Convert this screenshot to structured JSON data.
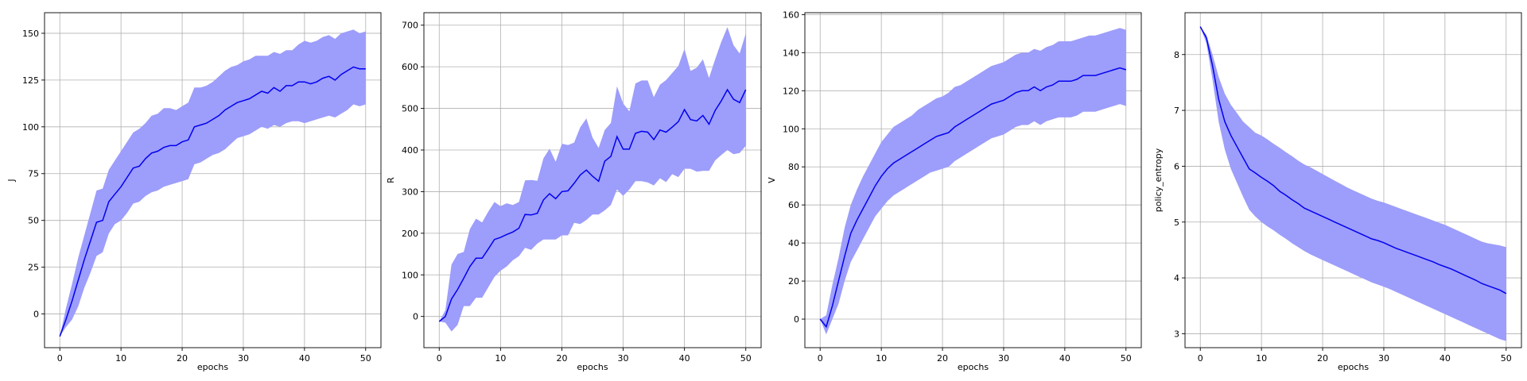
{
  "chart_data": [
    {
      "type": "line",
      "xlabel": "epochs",
      "ylabel": "J",
      "xlim": [
        -2.5,
        52.5
      ],
      "ylim": [
        -18,
        161
      ],
      "xticks": [
        0,
        10,
        20,
        30,
        40,
        50
      ],
      "yticks": [
        0,
        25,
        50,
        75,
        100,
        125,
        150
      ],
      "grid": true,
      "x": [
        0,
        1,
        2,
        3,
        4,
        5,
        6,
        7,
        8,
        9,
        10,
        11,
        12,
        13,
        14,
        15,
        16,
        17,
        18,
        19,
        20,
        21,
        22,
        23,
        24,
        25,
        26,
        27,
        28,
        29,
        30,
        31,
        32,
        33,
        34,
        35,
        36,
        37,
        38,
        39,
        40,
        41,
        42,
        43,
        44,
        45,
        46,
        47,
        48,
        49,
        50
      ],
      "series": [
        {
          "mean": [
            -12,
            -3,
            7,
            18,
            29,
            39,
            49,
            50,
            60,
            64,
            68,
            73,
            78,
            79,
            83,
            86,
            87,
            89,
            90,
            90,
            92,
            93,
            100,
            101,
            102,
            104,
            106,
            109,
            111,
            113,
            114,
            115,
            117,
            119,
            118,
            121,
            119,
            122,
            122,
            124,
            124,
            123,
            124,
            126,
            127,
            125,
            128,
            130,
            132,
            131,
            131
          ],
          "upper": [
            -12,
            3,
            16,
            30,
            42,
            54,
            66,
            67,
            77,
            82,
            87,
            92,
            97,
            99,
            102,
            106,
            107,
            110,
            110,
            109,
            111,
            113,
            121,
            121,
            122,
            124,
            127,
            130,
            132,
            133,
            135,
            136,
            138,
            138,
            138,
            140,
            139,
            141,
            141,
            144,
            146,
            145,
            146,
            148,
            149,
            147,
            150,
            151,
            152,
            150,
            151
          ],
          "lower": [
            -12,
            -7,
            -3,
            4,
            14,
            22,
            31,
            33,
            43,
            48,
            50,
            54,
            59,
            60,
            63,
            65,
            66,
            68,
            69,
            70,
            71,
            72,
            80,
            81,
            83,
            85,
            86,
            88,
            91,
            94,
            95,
            96,
            98,
            100,
            99,
            101,
            100,
            102,
            103,
            103,
            102,
            103,
            104,
            105,
            106,
            105,
            107,
            109,
            112,
            111,
            112
          ]
        }
      ]
    },
    {
      "type": "line",
      "xlabel": "epochs",
      "ylabel": "R",
      "xlim": [
        -2.5,
        52.5
      ],
      "ylim": [
        -75,
        730
      ],
      "xticks": [
        0,
        10,
        20,
        30,
        40,
        50
      ],
      "yticks": [
        0,
        100,
        200,
        300,
        400,
        500,
        600,
        700
      ],
      "grid": true,
      "x": [
        0,
        1,
        2,
        3,
        4,
        5,
        6,
        7,
        8,
        9,
        10,
        11,
        12,
        13,
        14,
        15,
        16,
        17,
        18,
        19,
        20,
        21,
        22,
        23,
        24,
        25,
        26,
        27,
        28,
        29,
        30,
        31,
        32,
        33,
        34,
        35,
        36,
        37,
        38,
        39,
        40,
        41,
        42,
        43,
        44,
        45,
        46,
        47,
        48,
        49,
        50
      ],
      "series": [
        {
          "mean": [
            -12,
            0,
            42,
            65,
            92,
            120,
            140,
            140,
            162,
            185,
            190,
            197,
            203,
            212,
            245,
            244,
            248,
            280,
            295,
            283,
            300,
            302,
            320,
            340,
            352,
            337,
            325,
            373,
            385,
            432,
            402,
            402,
            440,
            445,
            443,
            425,
            448,
            443,
            455,
            468,
            497,
            473,
            470,
            483,
            462,
            495,
            518,
            545,
            522,
            514,
            545
          ],
          "upper": [
            -12,
            15,
            125,
            150,
            155,
            210,
            235,
            226,
            252,
            275,
            265,
            272,
            268,
            275,
            327,
            328,
            326,
            380,
            403,
            372,
            415,
            412,
            418,
            455,
            476,
            430,
            405,
            448,
            465,
            553,
            512,
            493,
            560,
            567,
            567,
            527,
            557,
            568,
            585,
            602,
            643,
            590,
            598,
            618,
            573,
            618,
            660,
            695,
            652,
            632,
            680
          ],
          "lower": [
            -12,
            -15,
            -36,
            -20,
            25,
            25,
            45,
            45,
            70,
            95,
            110,
            120,
            135,
            145,
            165,
            160,
            175,
            185,
            185,
            185,
            195,
            195,
            225,
            222,
            232,
            245,
            245,
            255,
            268,
            305,
            290,
            305,
            325,
            325,
            322,
            315,
            332,
            323,
            342,
            335,
            355,
            355,
            348,
            350,
            350,
            375,
            388,
            400,
            390,
            393,
            410
          ]
        }
      ]
    },
    {
      "type": "line",
      "xlabel": "epochs",
      "ylabel": "V",
      "xlim": [
        -2.5,
        52.5
      ],
      "ylim": [
        -15,
        161
      ],
      "xticks": [
        0,
        10,
        20,
        30,
        40,
        50
      ],
      "yticks": [
        0,
        20,
        40,
        60,
        80,
        100,
        120,
        140,
        160
      ],
      "grid": true,
      "x": [
        0,
        1,
        2,
        3,
        4,
        5,
        6,
        7,
        8,
        9,
        10,
        11,
        12,
        13,
        14,
        15,
        16,
        17,
        18,
        19,
        20,
        21,
        22,
        23,
        24,
        25,
        26,
        27,
        28,
        29,
        30,
        31,
        32,
        33,
        34,
        35,
        36,
        37,
        38,
        39,
        40,
        41,
        42,
        43,
        44,
        45,
        46,
        47,
        48,
        49,
        50
      ],
      "series": [
        {
          "mean": [
            0,
            -4,
            7,
            20,
            33,
            45,
            52,
            58,
            64,
            70,
            75,
            79,
            82,
            84,
            86,
            88,
            90,
            92,
            94,
            96,
            97,
            98,
            101,
            103,
            105,
            107,
            109,
            111,
            113,
            114,
            115,
            117,
            119,
            120,
            120,
            122,
            120,
            122,
            123,
            125,
            125,
            125,
            126,
            128,
            128,
            128,
            129,
            130,
            131,
            132,
            131
          ],
          "upper": [
            0,
            2,
            18,
            32,
            48,
            60,
            68,
            75,
            81,
            87,
            93,
            97,
            101,
            103,
            105,
            107,
            110,
            112,
            114,
            116,
            117,
            119,
            122,
            123,
            125,
            127,
            129,
            131,
            133,
            134,
            135,
            137,
            139,
            140,
            140,
            142,
            141,
            143,
            144,
            146,
            146,
            146,
            147,
            148,
            149,
            149,
            150,
            151,
            152,
            153,
            152
          ],
          "lower": [
            0,
            -8,
            0,
            8,
            20,
            30,
            36,
            42,
            48,
            54,
            58,
            62,
            65,
            67,
            69,
            71,
            73,
            75,
            77,
            78,
            79,
            80,
            83,
            85,
            87,
            89,
            91,
            93,
            95,
            96,
            97,
            99,
            101,
            102,
            102,
            104,
            102,
            104,
            105,
            106,
            106,
            106,
            107,
            109,
            109,
            109,
            110,
            111,
            112,
            113,
            112
          ]
        }
      ]
    },
    {
      "type": "line",
      "xlabel": "epochs",
      "ylabel": "policy_entropy",
      "xlim": [
        -2.5,
        52.5
      ],
      "ylim": [
        2.75,
        8.75
      ],
      "xticks": [
        0,
        10,
        20,
        30,
        40,
        50
      ],
      "yticks": [
        3,
        4,
        5,
        6,
        7,
        8
      ],
      "grid": true,
      "x": [
        0,
        1,
        2,
        3,
        4,
        5,
        6,
        7,
        8,
        9,
        10,
        11,
        12,
        13,
        14,
        15,
        16,
        17,
        18,
        19,
        20,
        21,
        22,
        23,
        24,
        25,
        26,
        27,
        28,
        29,
        30,
        31,
        32,
        33,
        34,
        35,
        36,
        37,
        38,
        39,
        40,
        41,
        42,
        43,
        44,
        45,
        46,
        47,
        48,
        49,
        50
      ],
      "series": [
        {
          "mean": [
            8.5,
            8.3,
            7.8,
            7.2,
            6.8,
            6.55,
            6.35,
            6.15,
            5.95,
            5.88,
            5.8,
            5.73,
            5.65,
            5.55,
            5.48,
            5.4,
            5.33,
            5.25,
            5.2,
            5.15,
            5.1,
            5.05,
            5.0,
            4.95,
            4.9,
            4.85,
            4.8,
            4.75,
            4.7,
            4.67,
            4.63,
            4.58,
            4.53,
            4.49,
            4.45,
            4.41,
            4.37,
            4.33,
            4.29,
            4.24,
            4.2,
            4.16,
            4.11,
            4.06,
            4.01,
            3.96,
            3.9,
            3.86,
            3.82,
            3.78,
            3.72
          ],
          "upper": [
            8.5,
            8.35,
            8.0,
            7.6,
            7.3,
            7.1,
            6.95,
            6.8,
            6.7,
            6.6,
            6.55,
            6.48,
            6.4,
            6.33,
            6.25,
            6.18,
            6.1,
            6.03,
            5.98,
            5.92,
            5.86,
            5.8,
            5.74,
            5.68,
            5.62,
            5.57,
            5.52,
            5.47,
            5.42,
            5.38,
            5.35,
            5.31,
            5.27,
            5.23,
            5.19,
            5.15,
            5.11,
            5.07,
            5.03,
            4.99,
            4.95,
            4.9,
            4.85,
            4.8,
            4.75,
            4.7,
            4.65,
            4.62,
            4.6,
            4.58,
            4.55
          ],
          "lower": [
            8.5,
            8.2,
            7.55,
            6.8,
            6.3,
            5.95,
            5.7,
            5.45,
            5.22,
            5.1,
            5.0,
            4.92,
            4.85,
            4.77,
            4.7,
            4.62,
            4.55,
            4.48,
            4.42,
            4.37,
            4.32,
            4.27,
            4.22,
            4.17,
            4.12,
            4.07,
            4.02,
            3.97,
            3.92,
            3.88,
            3.84,
            3.8,
            3.75,
            3.7,
            3.65,
            3.6,
            3.55,
            3.5,
            3.45,
            3.4,
            3.35,
            3.3,
            3.25,
            3.2,
            3.15,
            3.1,
            3.05,
            3.0,
            2.95,
            2.9,
            2.87
          ]
        }
      ]
    }
  ],
  "colors": {
    "band": "#9d9dfb",
    "line": "#0000f0",
    "grid": "#b0b0b0",
    "axis": "#000000"
  }
}
